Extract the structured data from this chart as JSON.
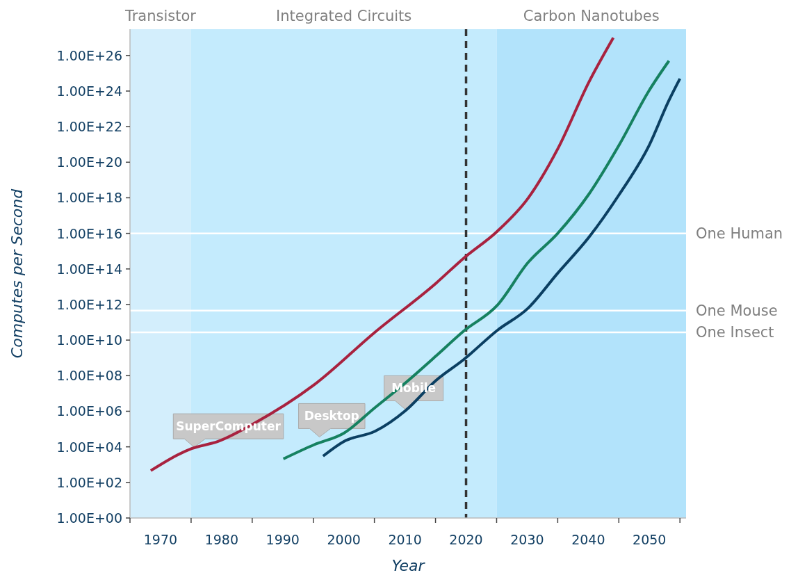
{
  "chart_data": {
    "type": "line",
    "xlabel": "Year",
    "ylabel": "Computes per Second",
    "log": "y",
    "xlim": [
      1965,
      2056
    ],
    "ylim": [
      1,
      3e+27
    ],
    "xticks": [
      {
        "value": 1965,
        "label": null
      },
      {
        "value": 1970,
        "label": "1970"
      },
      {
        "value": 1975,
        "label": null
      },
      {
        "value": 1980,
        "label": "1980"
      },
      {
        "value": 1985,
        "label": null
      },
      {
        "value": 1990,
        "label": "1990"
      },
      {
        "value": 1995,
        "label": null
      },
      {
        "value": 2000,
        "label": "2000"
      },
      {
        "value": 2005,
        "label": null
      },
      {
        "value": 2010,
        "label": "2010"
      },
      {
        "value": 2015,
        "label": null
      },
      {
        "value": 2020,
        "label": "2020"
      },
      {
        "value": 2025,
        "label": null
      },
      {
        "value": 2030,
        "label": "2030"
      },
      {
        "value": 2035,
        "label": null
      },
      {
        "value": 2040,
        "label": "2040"
      },
      {
        "value": 2045,
        "label": null
      },
      {
        "value": 2050,
        "label": "2050"
      },
      {
        "value": 2055,
        "label": null
      }
    ],
    "yticks": [
      {
        "value": 1,
        "label": "1.00E+00"
      },
      {
        "value": 100.0,
        "label": "1.00E+02"
      },
      {
        "value": 10000.0,
        "label": "1.00E+04"
      },
      {
        "value": 1000000.0,
        "label": "1.00E+06"
      },
      {
        "value": 100000000.0,
        "label": "1.00E+08"
      },
      {
        "value": 10000000000.0,
        "label": "1.00E+10"
      },
      {
        "value": 1000000000000.0,
        "label": "1.00E+12"
      },
      {
        "value": 100000000000000.0,
        "label": "1.00E+14"
      },
      {
        "value": 1e+16,
        "label": "1.00E+16"
      },
      {
        "value": 1e+18,
        "label": "1.00E+18"
      },
      {
        "value": 1e+20,
        "label": "1.00E+20"
      },
      {
        "value": 1e+22,
        "label": "1.00E+22"
      },
      {
        "value": 1e+24,
        "label": "1.00E+24"
      },
      {
        "value": 1e+26,
        "label": "1.00E+26"
      }
    ],
    "grid": false,
    "bands": [
      {
        "axis": "x",
        "from": 1965,
        "to": 1975,
        "label": "Transistor",
        "color": "#d3eefc"
      },
      {
        "axis": "x",
        "from": 1975,
        "to": 2025,
        "label": "Integrated Circuits",
        "color": "#c4ebfd"
      },
      {
        "axis": "x",
        "from": 2025,
        "to": 2056,
        "label": "Carbon Nanotubes",
        "color": "#b2e3fb"
      }
    ],
    "ref_lines": [
      {
        "axis": "y",
        "value": 1e+16,
        "label": "One Human",
        "color": "#ffffff",
        "line_style": "solid"
      },
      {
        "axis": "y",
        "value": 450000000000.0,
        "label": "One Mouse",
        "color": "#ffffff",
        "line_style": "solid"
      },
      {
        "axis": "y",
        "value": 27000000000.0,
        "label": "One Insect",
        "color": "#ffffff",
        "line_style": "solid"
      },
      {
        "axis": "x",
        "value": 2020,
        "color": "#333333",
        "line_style": "dashed"
      }
    ],
    "annotations": [
      {
        "text": "SuperComputer",
        "x": 1975.5,
        "y": 8000.0
      },
      {
        "text": "Desktop",
        "x": 1996,
        "y": 30000.0
      },
      {
        "text": "Mobile",
        "x": 2010,
        "y": 1100000.0
      }
    ],
    "series": [
      {
        "color": "#a8223f",
        "x": [
          1968.4,
          1975.1,
          1979.4,
          1985.1,
          1995.1,
          2005.1,
          2015.1,
          2019.6,
          2025.1,
          2030.1,
          2035,
          2040.1,
          2044.1
        ],
        "values": [
          460.0,
          8000.0,
          20000.0,
          190000.0,
          30000000.0,
          28000000000.0,
          16000000000000.0,
          400000000000000.0,
          1.3e+16,
          9e+17,
          5.6e+20,
          3.2e+24,
          1e+27
        ]
      },
      {
        "color": "#168160",
        "x": [
          1990.1,
          1995.1,
          2000,
          2005.1,
          2010.1,
          2015.1,
          2019.6,
          2025.1,
          2030.1,
          2035,
          2040.1,
          2045.1,
          2049.9,
          2053.2
        ],
        "values": [
          2100.0,
          13000.0,
          59000.0,
          1600000.0,
          40000000.0,
          1300000000.0,
          32000000000.0,
          900000000000.0,
          220000000000000.0,
          1e+16,
          1.6e+18,
          1e+21,
          1e+24,
          5e+25
        ]
      },
      {
        "color": "#0b3f62",
        "x": [
          1996.6,
          2000,
          2005.1,
          2010.1,
          2015.1,
          2019.6,
          2025.1,
          2030.1,
          2035,
          2040.1,
          2045.1,
          2049.9,
          2053.2,
          2055
        ],
        "values": [
          3000.0,
          20000.0,
          75000.0,
          1100000.0,
          55000000.0,
          800000000.0,
          35000000000.0,
          600000000000.0,
          58000000000000.0,
          6000000000000000.0,
          1.6e+18,
          8e+20,
          3e+23,
          5e+24
        ]
      }
    ]
  }
}
